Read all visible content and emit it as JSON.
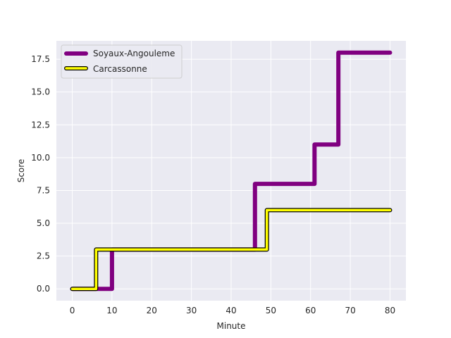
{
  "chart_data": {
    "type": "line",
    "step": "post",
    "xlabel": "Minute",
    "ylabel": "Score",
    "xlim": [
      -4,
      84
    ],
    "ylim": [
      -0.9,
      18.9
    ],
    "xticks": [
      0,
      10,
      20,
      30,
      40,
      50,
      60,
      70,
      80
    ],
    "yticks": [
      0.0,
      2.5,
      5.0,
      7.5,
      10.0,
      12.5,
      15.0,
      17.5
    ],
    "ytick_labels": [
      "0.0",
      "2.5",
      "5.0",
      "7.5",
      "10.0",
      "12.5",
      "15.0",
      "17.5"
    ],
    "grid": true,
    "legend_position": "top-left",
    "series": [
      {
        "name": "Soyaux-Angouleme",
        "color": "#800080",
        "style": "thick",
        "x": [
          0,
          9,
          10,
          45,
          46,
          60,
          61,
          66,
          67,
          80
        ],
        "y": [
          0,
          0,
          3,
          3,
          8,
          8,
          11,
          11,
          18,
          18
        ]
      },
      {
        "name": "Carcassonne",
        "color": "#ffff00",
        "outline": "#000000",
        "style": "outlined",
        "x": [
          0,
          5,
          6,
          48,
          49,
          80
        ],
        "y": [
          0,
          0,
          3,
          3,
          6,
          6
        ]
      }
    ]
  }
}
